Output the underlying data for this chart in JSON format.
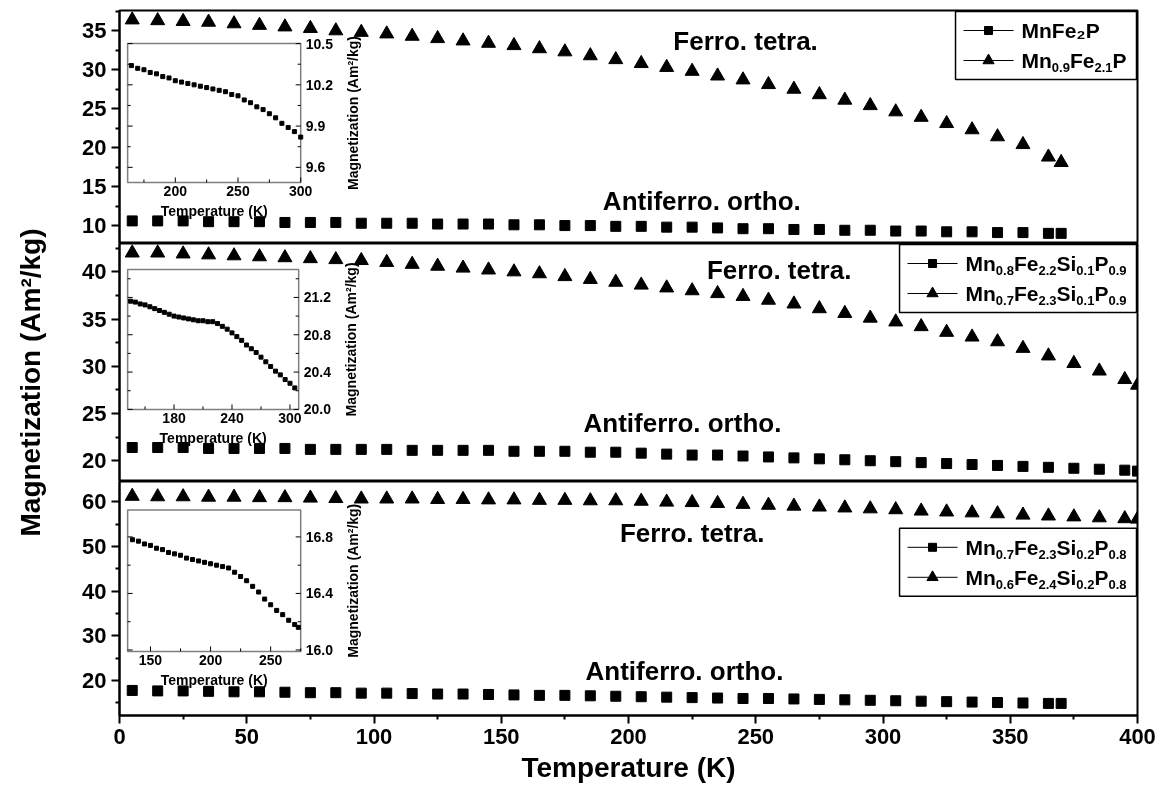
{
  "chart_data": [
    {
      "type": "scatter",
      "xlim": [
        0,
        400
      ],
      "ylim": [
        7.7,
        37.6
      ],
      "yticks": [
        10,
        15,
        20,
        25,
        30,
        35
      ],
      "tick_labels": "y",
      "legend": "top right",
      "annotations": [
        "Ferro. tetra.",
        "Antiferro. ortho."
      ],
      "series": [
        {
          "name": "MnFe₂P",
          "color": "#000000",
          "marker": "square",
          "x": [
            5,
            15,
            25,
            35,
            45,
            55,
            65,
            75,
            85,
            95,
            105,
            115,
            125,
            135,
            145,
            155,
            165,
            175,
            185,
            195,
            205,
            215,
            225,
            235,
            245,
            255,
            265,
            275,
            285,
            295,
            305,
            315,
            325,
            335,
            345,
            355,
            365,
            370
          ],
          "values": [
            10.6,
            10.6,
            10.6,
            10.5,
            10.5,
            10.5,
            10.4,
            10.4,
            10.4,
            10.3,
            10.3,
            10.3,
            10.2,
            10.2,
            10.2,
            10.1,
            10.1,
            10.0,
            10.0,
            9.9,
            9.9,
            9.8,
            9.8,
            9.7,
            9.6,
            9.6,
            9.5,
            9.5,
            9.4,
            9.4,
            9.3,
            9.3,
            9.2,
            9.2,
            9.1,
            9.1,
            9.0,
            9.0
          ]
        },
        {
          "name": "Mn$_{0.9}$Fe$_{2.1}$P",
          "color": "#000000",
          "marker": "triangle",
          "x": [
            5,
            15,
            25,
            35,
            45,
            55,
            65,
            75,
            85,
            95,
            105,
            115,
            125,
            135,
            145,
            155,
            165,
            175,
            185,
            195,
            205,
            215,
            225,
            235,
            245,
            255,
            265,
            275,
            285,
            295,
            305,
            315,
            325,
            335,
            345,
            355,
            365,
            370
          ],
          "values": [
            36.4,
            36.3,
            36.2,
            36.1,
            35.9,
            35.7,
            35.5,
            35.3,
            35.0,
            34.8,
            34.6,
            34.3,
            34.0,
            33.7,
            33.4,
            33.1,
            32.7,
            32.3,
            31.8,
            31.3,
            30.8,
            30.3,
            29.8,
            29.2,
            28.7,
            28.1,
            27.5,
            26.8,
            26.1,
            25.4,
            24.6,
            23.9,
            23.1,
            22.3,
            21.4,
            20.4,
            18.8,
            18.1
          ]
        }
      ]
    },
    {
      "type": "scatter",
      "xlim": [
        162,
        300
      ],
      "ylim": [
        9.49,
        10.5
      ],
      "xticks": [
        200,
        250,
        300
      ],
      "yticks": [
        9.6,
        9.9,
        10.2,
        10.5
      ],
      "xlabel": "Temperature (K)",
      "ylabel": "Magnetization (Am²/kg)",
      "marker": "square",
      "color": "#000000",
      "x": [
        165,
        170,
        175,
        180,
        185,
        190,
        195,
        200,
        205,
        210,
        215,
        220,
        225,
        230,
        235,
        240,
        245,
        250,
        255,
        260,
        265,
        270,
        275,
        280,
        285,
        290,
        295,
        300
      ],
      "values": [
        10.34,
        10.32,
        10.31,
        10.29,
        10.28,
        10.26,
        10.25,
        10.23,
        10.22,
        10.21,
        10.2,
        10.19,
        10.18,
        10.17,
        10.16,
        10.15,
        10.13,
        10.12,
        10.09,
        10.07,
        10.04,
        10.02,
        9.99,
        9.96,
        9.92,
        9.89,
        9.86,
        9.82
      ]
    },
    {
      "type": "scatter",
      "xlim": [
        0,
        400
      ],
      "ylim": [
        17.8,
        43.0
      ],
      "yticks": [
        20,
        25,
        30,
        35,
        40
      ],
      "tick_labels": "y",
      "legend": "top right",
      "ylabel": "Magnetization (Am²/kg)",
      "annotations": [
        "Ferro. tetra.",
        "Antiferro. ortho."
      ],
      "series": [
        {
          "name": "Mn$_{0.8}$Fe$_{2.2}$Si$_{0.1}$P$_{0.9}$",
          "color": "#000000",
          "marker": "square",
          "x": [
            5,
            15,
            25,
            35,
            45,
            55,
            65,
            75,
            85,
            95,
            105,
            115,
            125,
            135,
            145,
            155,
            165,
            175,
            185,
            195,
            205,
            215,
            225,
            235,
            245,
            255,
            265,
            275,
            285,
            295,
            305,
            315,
            325,
            335,
            345,
            355,
            365,
            375,
            385,
            395,
            400
          ],
          "values": [
            21.4,
            21.4,
            21.4,
            21.3,
            21.3,
            21.3,
            21.3,
            21.2,
            21.2,
            21.2,
            21.2,
            21.1,
            21.1,
            21.1,
            21.1,
            21.0,
            21.0,
            21.0,
            20.9,
            20.9,
            20.8,
            20.7,
            20.6,
            20.6,
            20.5,
            20.4,
            20.3,
            20.2,
            20.1,
            20.0,
            19.9,
            19.8,
            19.7,
            19.6,
            19.5,
            19.4,
            19.3,
            19.2,
            19.1,
            19.0,
            18.9
          ]
        },
        {
          "name": "Mn$_{0.7}$Fe$_{2.3}$Si$_{0.1}$P$_{0.9}$",
          "color": "#000000",
          "marker": "triangle",
          "x": [
            5,
            15,
            25,
            35,
            45,
            55,
            65,
            75,
            85,
            95,
            105,
            115,
            125,
            135,
            145,
            155,
            165,
            175,
            185,
            195,
            205,
            215,
            225,
            235,
            245,
            255,
            265,
            275,
            285,
            295,
            305,
            315,
            325,
            335,
            345,
            355,
            365,
            375,
            385,
            395,
            400
          ],
          "values": [
            42.0,
            42.0,
            41.9,
            41.8,
            41.7,
            41.6,
            41.5,
            41.4,
            41.3,
            41.2,
            41.0,
            40.8,
            40.6,
            40.4,
            40.2,
            40.0,
            39.8,
            39.5,
            39.2,
            38.9,
            38.6,
            38.3,
            38.0,
            37.7,
            37.4,
            37.0,
            36.6,
            36.1,
            35.6,
            35.1,
            34.7,
            34.2,
            33.6,
            33.1,
            32.6,
            31.9,
            31.1,
            30.3,
            29.5,
            28.6,
            28.0
          ]
        }
      ]
    },
    {
      "type": "scatter",
      "xlim": [
        132,
        309
      ],
      "ylim": [
        20.0,
        21.5
      ],
      "xticks": [
        180,
        240,
        300
      ],
      "yticks": [
        {
          "value": 20,
          "label": "20.0"
        },
        20.4,
        20.8,
        21.2
      ],
      "xlabel": "Temperature (K)",
      "ylabel": "Magnetization (Am²/kg)",
      "marker": "square",
      "color": "#000000",
      "x": [
        135,
        140,
        145,
        150,
        155,
        160,
        165,
        170,
        175,
        180,
        185,
        190,
        195,
        200,
        205,
        210,
        215,
        220,
        225,
        230,
        235,
        240,
        245,
        250,
        255,
        260,
        265,
        270,
        275,
        280,
        285,
        290,
        295,
        300,
        305
      ],
      "values": [
        21.16,
        21.15,
        21.13,
        21.12,
        21.1,
        21.08,
        21.06,
        21.04,
        21.02,
        21.0,
        20.99,
        20.98,
        20.97,
        20.96,
        20.95,
        20.95,
        20.94,
        20.94,
        20.92,
        20.89,
        20.86,
        20.82,
        20.78,
        20.74,
        20.69,
        20.65,
        20.61,
        20.56,
        20.51,
        20.46,
        20.41,
        20.37,
        20.32,
        20.28,
        20.23
      ]
    },
    {
      "type": "scatter",
      "xlim": [
        0,
        400
      ],
      "ylim": [
        12.2,
        64.5
      ],
      "xticks": [
        0,
        50,
        100,
        150,
        200,
        250,
        300,
        350,
        400
      ],
      "yticks": [
        20,
        30,
        40,
        50,
        60
      ],
      "xlabel": "Temperature (K)",
      "legend": "right",
      "annotations": [
        "Ferro. tetra.",
        "Antiferro. ortho."
      ],
      "series": [
        {
          "name": "Mn$_{0.7}$Fe$_{2.3}$Si$_{0.2}$P$_{0.8}$",
          "color": "#000000",
          "marker": "square",
          "x": [
            5,
            15,
            25,
            35,
            45,
            55,
            65,
            75,
            85,
            95,
            105,
            115,
            125,
            135,
            145,
            155,
            165,
            175,
            185,
            195,
            205,
            215,
            225,
            235,
            245,
            255,
            265,
            275,
            285,
            295,
            305,
            315,
            325,
            335,
            345,
            355,
            365,
            370
          ],
          "values": [
            17.8,
            17.7,
            17.7,
            17.6,
            17.5,
            17.5,
            17.4,
            17.3,
            17.3,
            17.2,
            17.2,
            17.1,
            17.0,
            17.0,
            16.9,
            16.8,
            16.7,
            16.7,
            16.6,
            16.5,
            16.4,
            16.3,
            16.2,
            16.1,
            16.0,
            16.0,
            15.9,
            15.8,
            15.7,
            15.6,
            15.5,
            15.4,
            15.3,
            15.2,
            15.1,
            15.0,
            14.9,
            14.9
          ]
        },
        {
          "name": "Mn$_{0.6}$Fe$_{2.4}$Si$_{0.2}$P$_{0.8}$",
          "color": "#000000",
          "marker": "triangle",
          "x": [
            5,
            15,
            25,
            35,
            45,
            55,
            65,
            75,
            85,
            95,
            105,
            115,
            125,
            135,
            145,
            155,
            165,
            175,
            185,
            195,
            205,
            215,
            225,
            235,
            245,
            255,
            265,
            275,
            285,
            295,
            305,
            315,
            325,
            335,
            345,
            355,
            365,
            375,
            385,
            395,
            400
          ],
          "values": [
            61.2,
            61.1,
            61.1,
            61.0,
            61.0,
            60.9,
            60.9,
            60.8,
            60.7,
            60.6,
            60.6,
            60.6,
            60.5,
            60.5,
            60.4,
            60.4,
            60.3,
            60.3,
            60.2,
            60.2,
            60.1,
            59.9,
            59.8,
            59.6,
            59.4,
            59.2,
            59.0,
            58.8,
            58.6,
            58.4,
            58.2,
            57.9,
            57.7,
            57.5,
            57.3,
            57.0,
            56.8,
            56.6,
            56.4,
            56.2,
            56.1
          ]
        }
      ]
    },
    {
      "type": "scatter",
      "xlim": [
        131,
        275
      ],
      "ylim": [
        15.99,
        16.99
      ],
      "xticks": [
        150,
        200,
        250
      ],
      "yticks": [
        {
          "value": 16,
          "label": "16.0"
        },
        16.4,
        16.8
      ],
      "xlabel": "Temperature (K)",
      "ylabel": "Magnetization (Am²/kg)",
      "marker": "square",
      "color": "#000000",
      "x": [
        135,
        140,
        145,
        150,
        155,
        160,
        165,
        170,
        175,
        180,
        185,
        190,
        195,
        200,
        205,
        210,
        215,
        220,
        225,
        230,
        235,
        240,
        245,
        250,
        255,
        260,
        265,
        270,
        273
      ],
      "values": [
        16.78,
        16.77,
        16.75,
        16.74,
        16.72,
        16.71,
        16.69,
        16.68,
        16.67,
        16.65,
        16.64,
        16.63,
        16.62,
        16.61,
        16.6,
        16.59,
        16.58,
        16.55,
        16.52,
        16.49,
        16.45,
        16.41,
        16.36,
        16.32,
        16.28,
        16.25,
        16.21,
        16.18,
        16.16
      ]
    }
  ]
}
